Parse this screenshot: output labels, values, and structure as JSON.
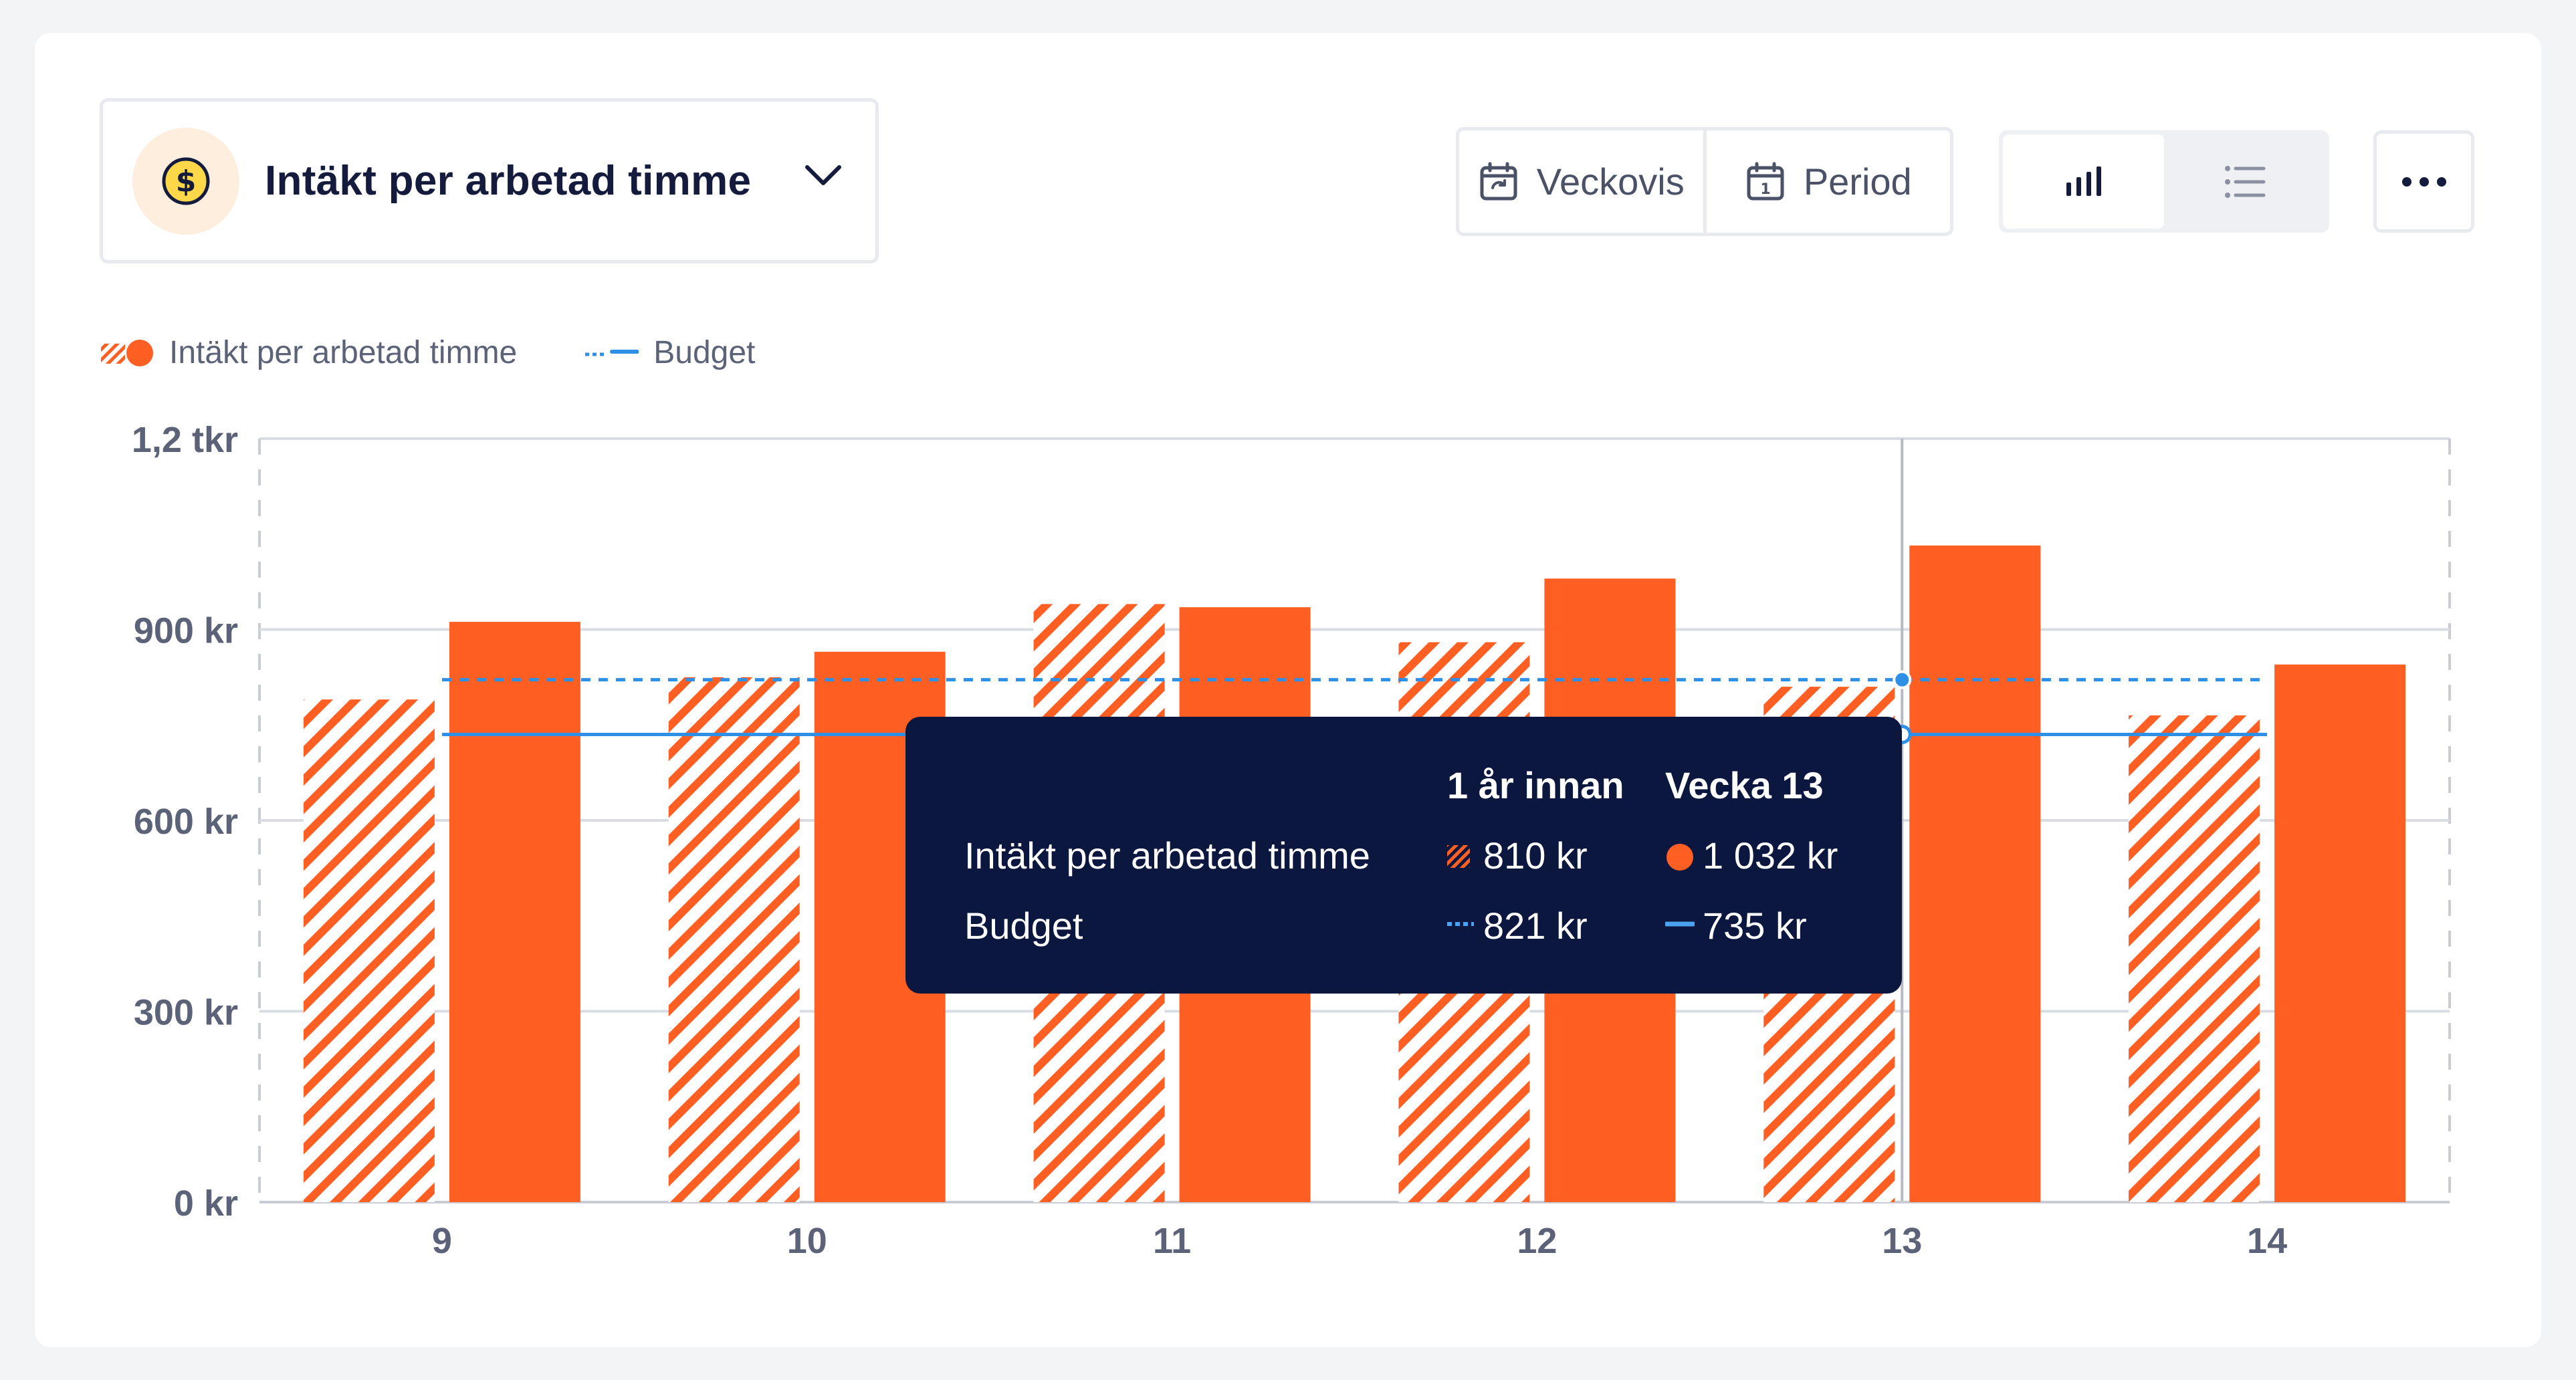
{
  "header": {
    "metric_title": "Intäkt per arbetad timme",
    "icon": "coin-dollar-icon",
    "period_buttons": [
      {
        "label": "Veckovis",
        "icon": "calendar-repeat-icon"
      },
      {
        "label": "Period",
        "icon": "calendar-icon"
      }
    ],
    "view_toggle": {
      "options": [
        "bar-chart-icon",
        "list-icon"
      ],
      "selected": "bar-chart-icon"
    },
    "more_icon": "more-horizontal-icon"
  },
  "legend": {
    "series_label": "Intäkt per arbetad timme",
    "budget_label": "Budget"
  },
  "colors": {
    "current": "#ff5f22",
    "previous_hatch": "#ff5f22",
    "budget": "#2e8fe6",
    "tooltip_bg": "#0c1740",
    "axis_text": "#5c6378"
  },
  "chart_data": {
    "type": "bar",
    "categories": [
      "9",
      "10",
      "11",
      "12",
      "13",
      "14"
    ],
    "series": [
      {
        "name": "1 år innan",
        "style": "hatched",
        "values": [
          790,
          825,
          940,
          880,
          810,
          765
        ]
      },
      {
        "name": "Vecka",
        "style": "solid",
        "values": [
          912,
          865,
          935,
          980,
          1032,
          845
        ]
      }
    ],
    "budget": {
      "previous_year": 821,
      "current": 735
    },
    "y_ticks": [
      {
        "value": 0,
        "label": "0 kr"
      },
      {
        "value": 300,
        "label": "300 kr"
      },
      {
        "value": 600,
        "label": "600 kr"
      },
      {
        "value": 900,
        "label": "900 kr"
      },
      {
        "value": 1200,
        "label": "1,2 tkr"
      }
    ],
    "ylim": [
      0,
      1200
    ],
    "highlighted_category": "13"
  },
  "tooltip": {
    "col1_header": "1 år innan",
    "col2_header": "Vecka 13",
    "row1_label": "Intäkt per arbetad timme",
    "row1_prev": "810 kr",
    "row1_curr": "1 032 kr",
    "row2_label": "Budget",
    "row2_prev": "821 kr",
    "row2_curr": "735 kr"
  }
}
